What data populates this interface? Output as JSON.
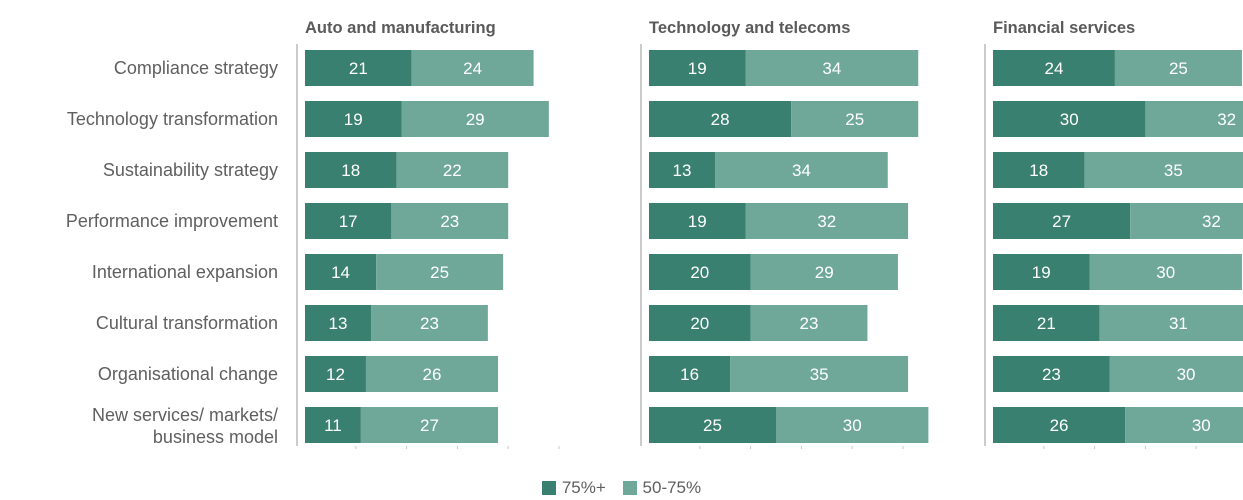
{
  "chart_data": {
    "type": "bar",
    "orientation": "horizontal",
    "stacked": true,
    "categories": [
      "Compliance strategy",
      "Technology transformation",
      "Sustainability strategy",
      "Performance improvement",
      "International expansion",
      "Cultural transformation",
      "Organisational change",
      "New services/ markets/ business model"
    ],
    "legend_position": "bottom-center",
    "legend": [
      {
        "label": "75%+",
        "color": "#3a8070"
      },
      {
        "label": "50-75%",
        "color": "#6fa899"
      }
    ],
    "panels": [
      {
        "title": "Auto and manufacturing",
        "series": [
          {
            "name": "75%+",
            "values": [
              21,
              19,
              18,
              17,
              14,
              13,
              12,
              11
            ]
          },
          {
            "name": "50-75%",
            "values": [
              24,
              29,
              22,
              23,
              25,
              23,
              26,
              27
            ]
          }
        ]
      },
      {
        "title": "Technology and telecoms",
        "series": [
          {
            "name": "75%+",
            "values": [
              19,
              28,
              13,
              19,
              20,
              20,
              16,
              25
            ]
          },
          {
            "name": "50-75%",
            "values": [
              34,
              25,
              34,
              32,
              29,
              23,
              35,
              30
            ]
          }
        ]
      },
      {
        "title": "Financial services",
        "series": [
          {
            "name": "75%+",
            "values": [
              24,
              30,
              18,
              27,
              19,
              21,
              23,
              26
            ]
          },
          {
            "name": "50-75%",
            "values": [
              25,
              32,
              35,
              32,
              30,
              31,
              30,
              30
            ]
          }
        ]
      }
    ]
  }
}
